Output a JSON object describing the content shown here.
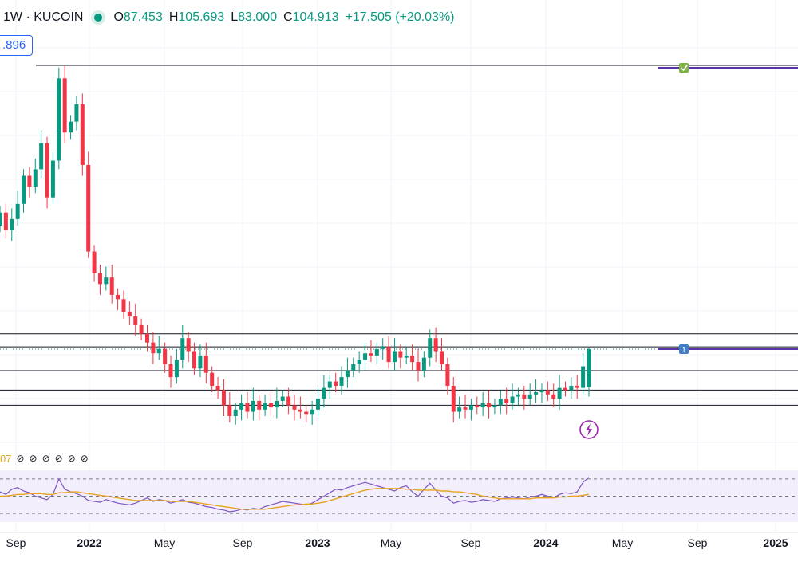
{
  "legend": {
    "symbol": "1W · KUCOIN",
    "open_label": "O",
    "open": "87.453",
    "high_label": "H",
    "high": "105.693",
    "low_label": "L",
    "low": "83.000",
    "close_label": "C",
    "close": "104.913",
    "change": "+17.505 (+20.03%)"
  },
  "price_tag": ".896",
  "rsi": {
    "value_fragment": "07",
    "hidden_values_icon": "no-data-icon",
    "hidden_value_count": 6
  },
  "markers": {
    "alert_icon": "lightning-icon",
    "check_icon": "check-icon",
    "number_badge": "1"
  },
  "x_axis_labels": [
    "Sep",
    "2022",
    "May",
    "Sep",
    "2023",
    "May",
    "Sep",
    "2024",
    "May",
    "Sep",
    "2025"
  ],
  "colors": {
    "up": "#089981",
    "down": "#f23645",
    "accent": "#2962ff",
    "drawing": "#5b33a6",
    "rsi": "#7e57c2",
    "rsi_ma": "#e8a320"
  },
  "chart_data": [
    {
      "type": "candlestick",
      "title": "1W · KUCOIN",
      "xlabel": "",
      "ylabel": "",
      "x_ticks": [
        "Sep",
        "2022",
        "May",
        "Sep",
        "2023",
        "May",
        "Sep",
        "2024",
        "May",
        "Sep",
        "2025"
      ],
      "ylim": [
        60,
        250
      ],
      "grid": true,
      "last_candle": {
        "open": 87.453,
        "high": 105.693,
        "low": 83.0,
        "close": 104.913
      },
      "horizontal_levels": [
        236,
        112,
        106,
        95,
        86,
        79
      ],
      "current_price_line": 104.913,
      "closes": [
        168,
        160,
        165,
        172,
        185,
        180,
        188,
        200,
        175,
        192,
        230,
        205,
        210,
        218,
        190,
        150,
        140,
        135,
        138,
        130,
        128,
        122,
        120,
        116,
        112,
        108,
        103,
        105,
        98,
        92,
        100,
        110,
        104,
        96,
        102,
        94,
        88,
        86,
        79,
        74,
        77,
        80,
        76,
        81,
        77,
        80,
        78,
        81,
        83,
        79,
        77,
        76,
        75,
        77,
        82,
        87,
        90,
        88,
        92,
        95,
        98,
        100,
        103,
        102,
        105,
        106,
        99,
        104,
        101,
        102,
        99,
        95,
        101,
        110,
        104,
        98,
        88,
        76,
        78,
        77,
        79,
        78,
        80,
        78,
        79,
        82,
        80,
        83,
        84,
        82,
        84,
        85,
        86,
        84,
        82,
        87,
        86,
        88,
        87,
        97,
        104.913
      ]
    },
    {
      "type": "line",
      "title": "RSI",
      "ylim": [
        0,
        100
      ],
      "bands": [
        70,
        50,
        30
      ],
      "series": [
        {
          "values": [
            55,
            52,
            58,
            60,
            56,
            54,
            50,
            48,
            46,
            52,
            70,
            58,
            55,
            53,
            50,
            45,
            44,
            43,
            46,
            44,
            42,
            41,
            40,
            42,
            45,
            48,
            44,
            46,
            45,
            42,
            44,
            46,
            43,
            42,
            40,
            38,
            37,
            35,
            34,
            32,
            33,
            35,
            34,
            36,
            35,
            38,
            40,
            42,
            44,
            43,
            42,
            41,
            40,
            42,
            46,
            50,
            54,
            58,
            57,
            60,
            62,
            64,
            66,
            64,
            62,
            60,
            58,
            56,
            60,
            62,
            55,
            50,
            58,
            65,
            57,
            50,
            48,
            42,
            44,
            45,
            43,
            44,
            46,
            45,
            44,
            47,
            48,
            49,
            48,
            47,
            49,
            50,
            52,
            50,
            48,
            52,
            54,
            53,
            55,
            66,
            72
          ]
        },
        {
          "values": [
            50,
            50,
            51,
            52,
            52,
            53,
            53,
            53,
            52,
            52,
            54,
            54,
            55,
            55,
            54,
            53,
            52,
            51,
            50,
            49,
            48,
            47,
            46,
            45,
            45,
            45,
            45,
            45,
            45,
            44,
            44,
            44,
            44,
            43,
            42,
            41,
            40,
            39,
            38,
            37,
            36,
            35,
            35,
            35,
            35,
            35,
            36,
            37,
            38,
            39,
            40,
            40,
            41,
            41,
            42,
            43,
            45,
            47,
            49,
            51,
            53,
            55,
            57,
            58,
            59,
            59,
            59,
            59,
            59,
            58,
            58,
            57,
            57,
            57,
            57,
            56,
            56,
            55,
            55,
            54,
            53,
            52,
            50,
            49,
            48,
            47,
            47,
            47,
            47,
            47,
            47,
            48,
            48,
            48,
            48,
            49,
            49,
            50,
            50,
            51,
            52
          ]
        }
      ]
    }
  ]
}
